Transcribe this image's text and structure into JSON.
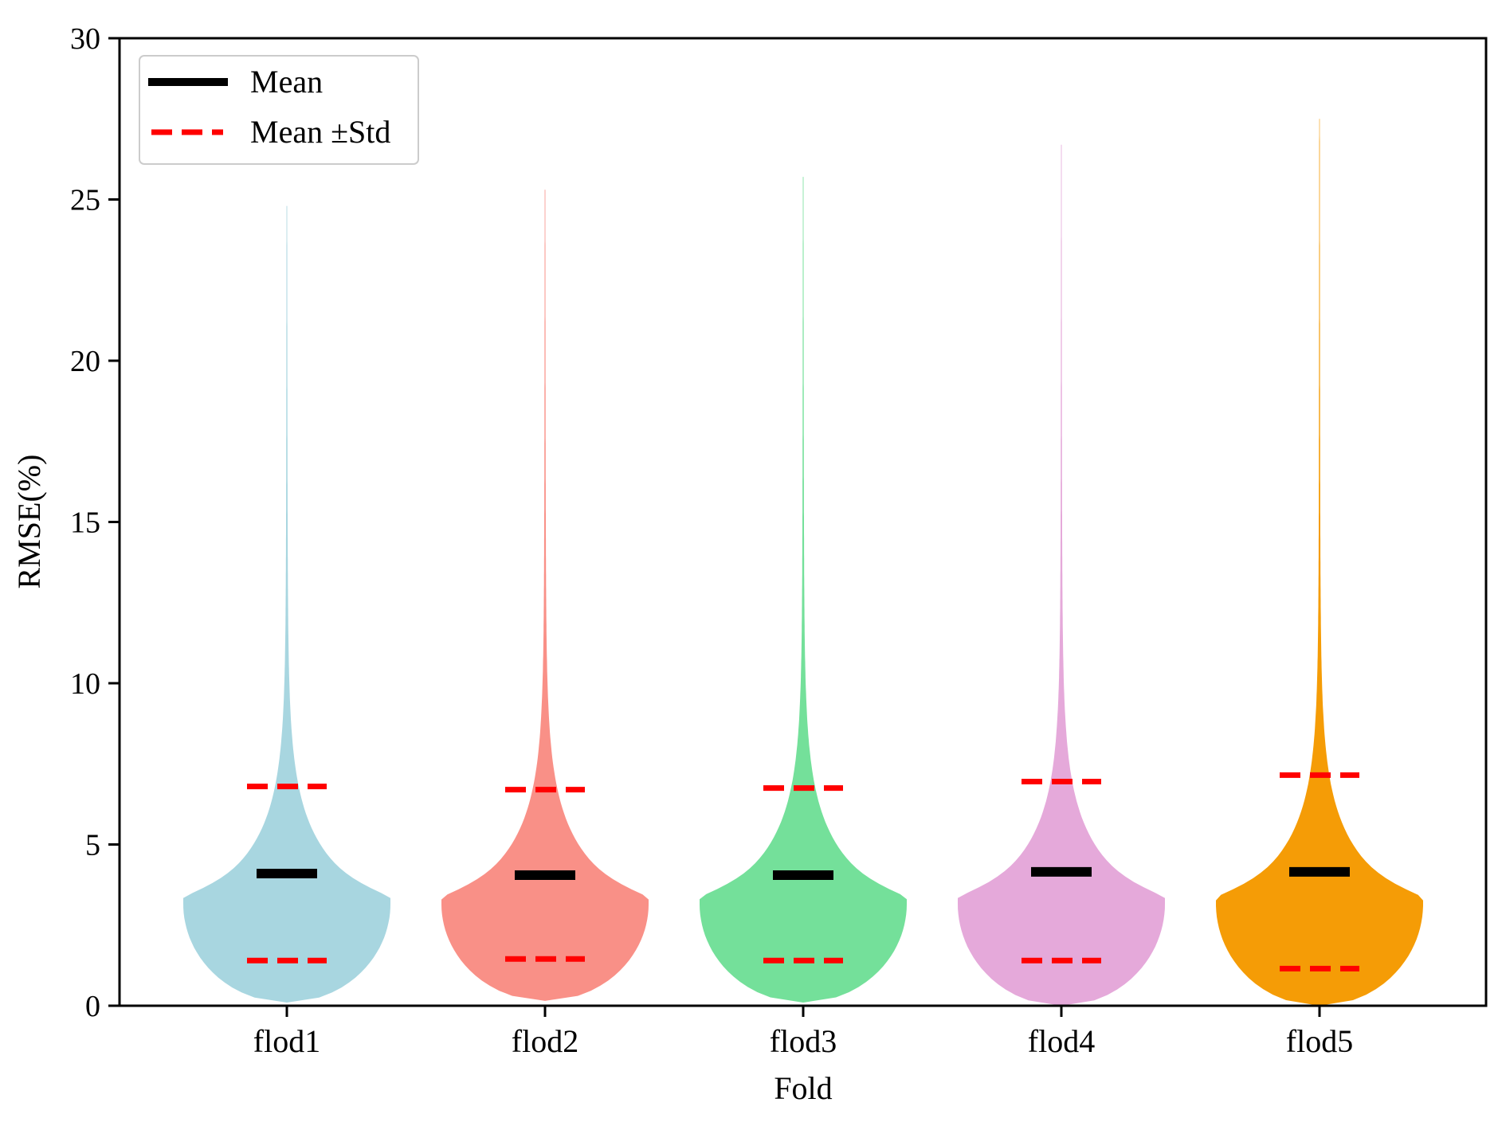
{
  "chart_data": {
    "type": "violin",
    "xlabel": "Fold",
    "ylabel": "RMSE(%)",
    "ylim": [
      0,
      30
    ],
    "yticks": [
      0,
      5,
      10,
      15,
      20,
      25,
      30
    ],
    "categories": [
      "flod1",
      "flod2",
      "flod3",
      "flod4",
      "flod5"
    ],
    "series": [
      {
        "category": "flod1",
        "color": "#a8d6e0",
        "mean": 4.1,
        "mean_plus_std": 6.8,
        "mean_minus_std": 1.4,
        "min": 0.1,
        "max": 24.8,
        "mode": 3.1
      },
      {
        "category": "flod2",
        "color": "#f99087",
        "mean": 4.05,
        "mean_plus_std": 6.7,
        "mean_minus_std": 1.45,
        "min": 0.15,
        "max": 25.3,
        "mode": 3.1
      },
      {
        "category": "flod3",
        "color": "#74e09a",
        "mean": 4.05,
        "mean_plus_std": 6.75,
        "mean_minus_std": 1.4,
        "min": 0.1,
        "max": 25.7,
        "mode": 3.1
      },
      {
        "category": "flod4",
        "color": "#e5a9da",
        "mean": 4.15,
        "mean_plus_std": 6.95,
        "mean_minus_std": 1.4,
        "min": 0.0,
        "max": 26.7,
        "mode": 3.1
      },
      {
        "category": "flod5",
        "color": "#f59c06",
        "mean": 4.15,
        "mean_plus_std": 7.15,
        "mean_minus_std": 1.15,
        "min": 0.0,
        "max": 27.5,
        "mode": 3.1
      }
    ],
    "legend": {
      "position": "top-left",
      "entries": [
        {
          "label": "Mean",
          "style": "solid",
          "color": "#000000"
        },
        {
          "label": "Mean ±Std",
          "style": "dashed",
          "color": "#ff0000"
        }
      ]
    },
    "grid": false
  }
}
